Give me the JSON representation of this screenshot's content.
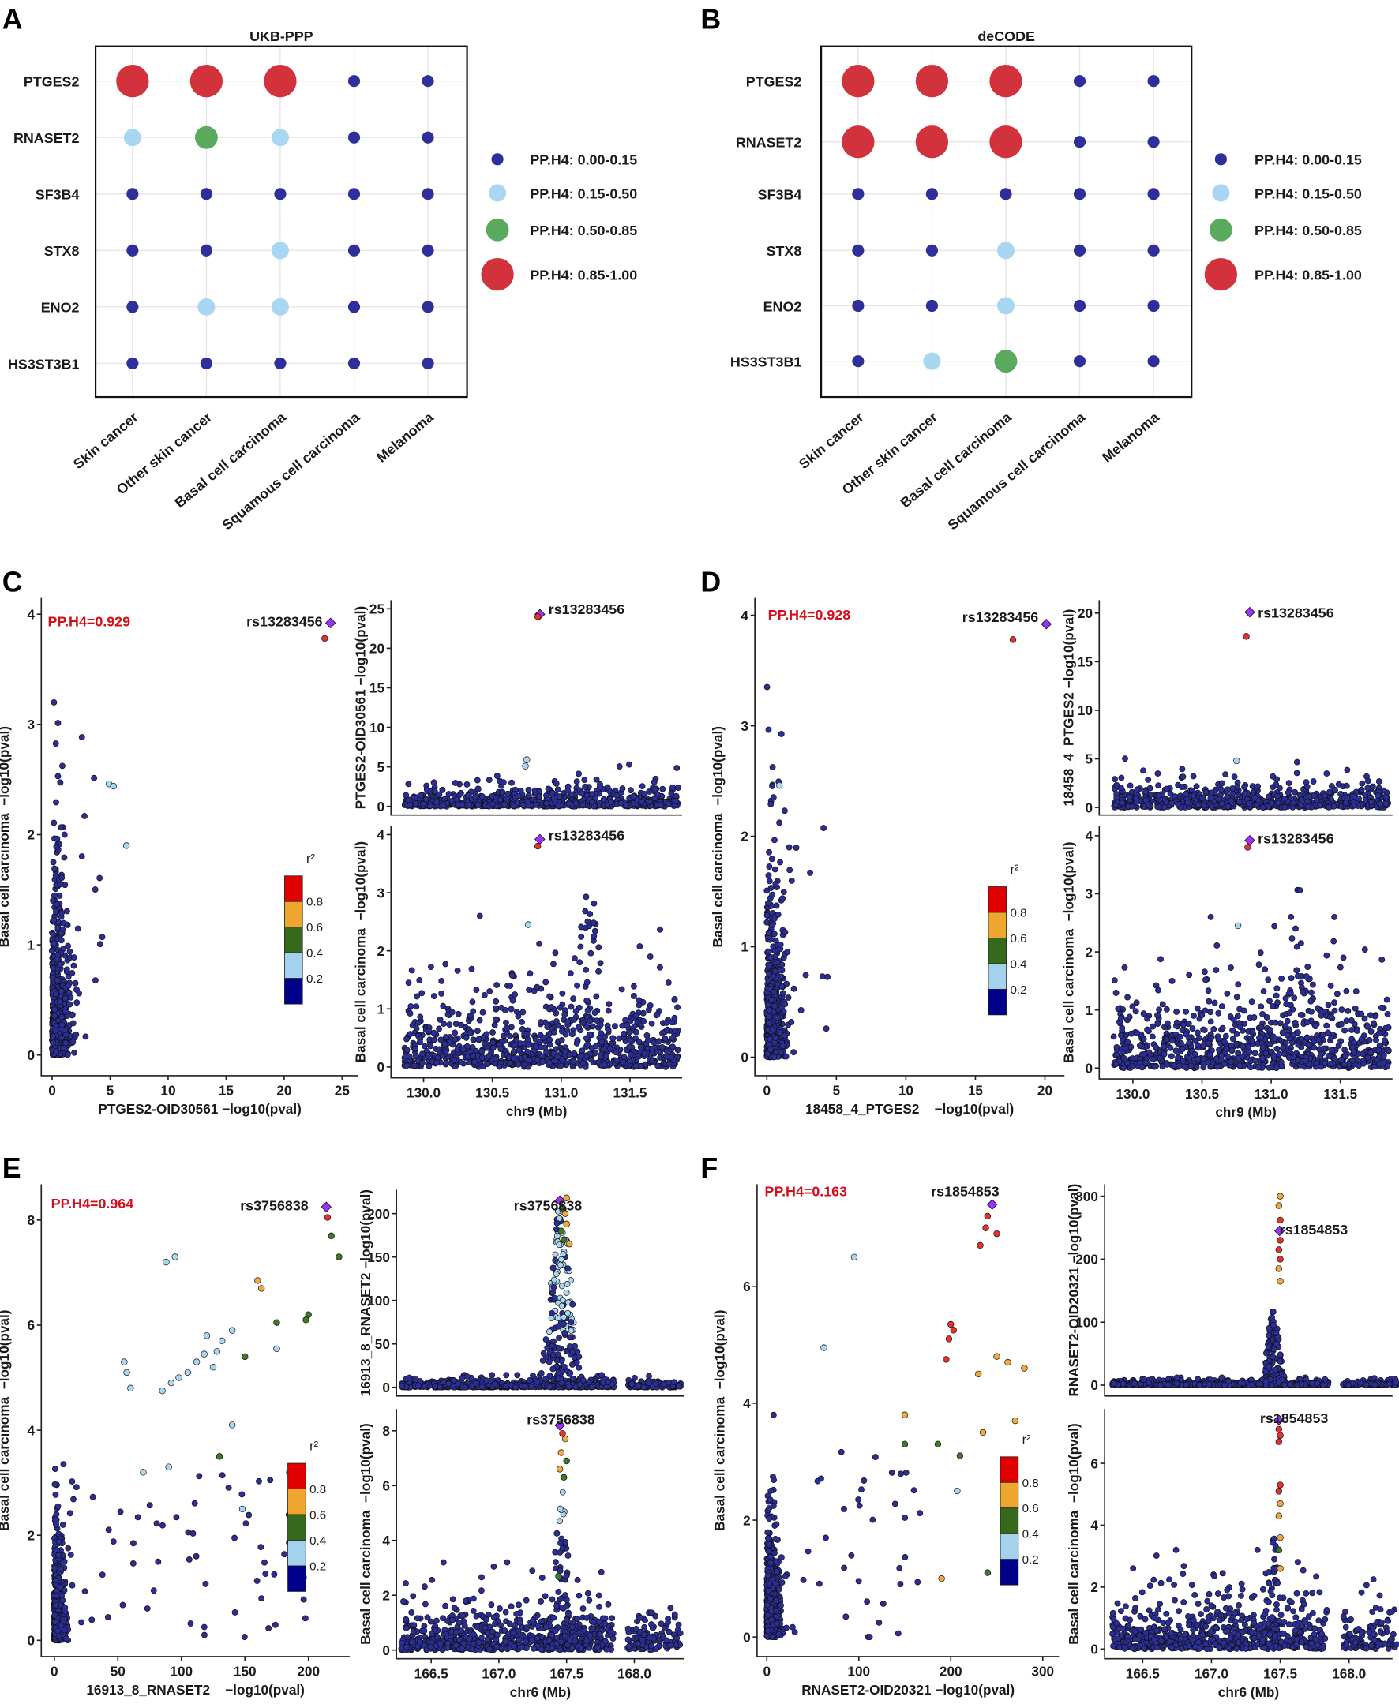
{
  "legend_ph4": {
    "items": [
      {
        "label": "PP.H4: 0.00-0.15",
        "color": "#2e2f9a"
      },
      {
        "label": "PP.H4: 0.15-0.50",
        "color": "#a9d6f0"
      },
      {
        "label": "PP.H4: 0.50-0.85",
        "color": "#5aaa5e"
      },
      {
        "label": "PP.H4: 0.85-1.00",
        "color": "#d2323b"
      }
    ]
  },
  "r2_legend": {
    "title": "r²",
    "labels": [
      "0.8",
      "0.6",
      "0.4",
      "0.2"
    ],
    "colors": [
      "#e00000",
      "#eea62e",
      "#36691c",
      "#a4d2ec",
      "#00008b"
    ]
  },
  "point_colors": {
    "lead": "#9b30ff",
    "r2_08": "#e8312f",
    "r2_06": "#f2a93b",
    "r2_04": "#3c7a28",
    "r2_02": "#a8d8ef",
    "r2_00": "#2a2e96"
  },
  "chart_data": [
    {
      "panel": "A",
      "type": "dot-matrix",
      "title": "UKB-PPP",
      "genes": [
        "PTGES2",
        "RNASET2",
        "SF3B4",
        "STX8",
        "ENO2",
        "HS3ST3B1"
      ],
      "diseases": [
        "Skin cancer",
        "Other skin cancer",
        "Basal cell carcinoma",
        "Squamous cell carcinoma",
        "Melanoma"
      ],
      "pp_h4_level": [
        [
          3,
          3,
          3,
          0,
          0
        ],
        [
          1,
          2,
          1,
          0,
          0
        ],
        [
          0,
          0,
          0,
          0,
          0
        ],
        [
          0,
          0,
          1,
          0,
          0
        ],
        [
          0,
          1,
          1,
          0,
          0
        ],
        [
          0,
          0,
          0,
          0,
          0
        ]
      ]
    },
    {
      "panel": "B",
      "type": "dot-matrix",
      "title": "deCODE",
      "genes": [
        "PTGES2",
        "RNASET2",
        "SF3B4",
        "STX8",
        "ENO2",
        "HS3ST3B1"
      ],
      "diseases": [
        "Skin cancer",
        "Other skin cancer",
        "Basal cell carcinoma",
        "Squamous cell carcinoma",
        "Melanoma"
      ],
      "pp_h4_level": [
        [
          3,
          3,
          3,
          0,
          0
        ],
        [
          3,
          3,
          3,
          0,
          0
        ],
        [
          0,
          0,
          0,
          0,
          0
        ],
        [
          0,
          0,
          1,
          0,
          0
        ],
        [
          0,
          0,
          1,
          0,
          0
        ],
        [
          0,
          1,
          2,
          0,
          0
        ]
      ]
    },
    {
      "panel": "C",
      "type": "scatter",
      "pp_h4": "PP.H4=0.929",
      "lead_snp": "rs13283456",
      "left": {
        "xlabel": "PTGES2-OID30561 −log10(pval)",
        "ylabel": "Basal cell carcinoma  −log10(pval)",
        "xlim": [
          0,
          25
        ],
        "ylim": [
          0,
          4
        ],
        "xticks": [
          0,
          5,
          10,
          15,
          20,
          25
        ],
        "yticks": [
          0,
          1,
          2,
          3,
          4
        ],
        "points": [
          {
            "x": 24,
            "y": 3.92,
            "r2": 1,
            "lead": true
          },
          {
            "x": 23.5,
            "y": 3.78,
            "r2": 0.9
          },
          {
            "x": 4.9,
            "y": 2.46,
            "r2": 0.3
          },
          {
            "x": 5.3,
            "y": 2.44,
            "r2": 0.3
          },
          {
            "x": 6.4,
            "y": 1.9,
            "r2": 0.3
          }
        ]
      },
      "top": {
        "ylabel": "PTGES2-OID30561 −log10(pval)",
        "xlim": [
          130,
          131.5
        ],
        "ylim": [
          0,
          25
        ],
        "yticks": [
          0,
          5,
          10,
          15,
          20,
          25
        ],
        "points": [
          {
            "x": 130.845,
            "y": 24.3,
            "r2": 1,
            "lead": true
          },
          {
            "x": 130.83,
            "y": 24.0,
            "r2": 0.9
          },
          {
            "x": 130.75,
            "y": 5.9,
            "r2": 0.3
          },
          {
            "x": 130.74,
            "y": 5.1,
            "r2": 0.3
          }
        ]
      },
      "bottom": {
        "xlabel": "chr9 (Mb)",
        "ylabel": "Basal cell carcinoma  −log10(pval)",
        "xlim": [
          130,
          131.5
        ],
        "ylim": [
          0,
          4
        ],
        "xticks": [
          130,
          130.5,
          131,
          131.5
        ],
        "yticks": [
          0,
          1,
          2,
          3,
          4
        ],
        "points": [
          {
            "x": 130.845,
            "y": 3.92,
            "r2": 1,
            "lead": true
          },
          {
            "x": 130.83,
            "y": 3.8,
            "r2": 0.9
          },
          {
            "x": 130.76,
            "y": 2.45,
            "r2": 0.3
          }
        ]
      }
    },
    {
      "panel": "D",
      "type": "scatter",
      "pp_h4": "PP.H4=0.928",
      "lead_snp": "rs13283456",
      "left": {
        "xlabel": "18458_4_PTGES2    −log10(pval)",
        "ylabel": "Basal cell carcinoma  −log10(pval)",
        "xlim": [
          0,
          20
        ],
        "ylim": [
          0,
          4
        ],
        "xticks": [
          0,
          5,
          10,
          15,
          20
        ],
        "yticks": [
          0,
          1,
          2,
          3,
          4
        ],
        "points": [
          {
            "x": 20.1,
            "y": 3.92,
            "r2": 1,
            "lead": true
          },
          {
            "x": 17.7,
            "y": 3.78,
            "r2": 0.9
          },
          {
            "x": 0.9,
            "y": 2.46,
            "r2": 0.3
          }
        ]
      },
      "top": {
        "ylabel": "18458_4_PTGES2 −log10(pval)",
        "xlim": [
          130,
          131.5
        ],
        "ylim": [
          0,
          20
        ],
        "yticks": [
          0,
          5,
          10,
          15,
          20
        ],
        "points": [
          {
            "x": 130.845,
            "y": 20.1,
            "r2": 1,
            "lead": true
          },
          {
            "x": 130.82,
            "y": 17.6,
            "r2": 0.9
          },
          {
            "x": 130.75,
            "y": 4.8,
            "r2": 0.3
          }
        ]
      },
      "bottom": {
        "xlabel": "chr9 (Mb)",
        "ylabel": "Basal cell carcinoma  −log10(pval)",
        "xlim": [
          130,
          131.5
        ],
        "ylim": [
          0,
          4
        ],
        "xticks": [
          130,
          130.5,
          131,
          131.5
        ],
        "yticks": [
          0,
          1,
          2,
          3,
          4
        ],
        "points": [
          {
            "x": 130.845,
            "y": 3.92,
            "r2": 1,
            "lead": true
          },
          {
            "x": 130.83,
            "y": 3.8,
            "r2": 0.9
          },
          {
            "x": 130.76,
            "y": 2.45,
            "r2": 0.3
          }
        ]
      }
    },
    {
      "panel": "E",
      "type": "scatter",
      "pp_h4": "PP.H4=0.964",
      "lead_snp": "rs3756838",
      "left": {
        "xlabel": "16913_8_RNASET2    −log10(pval)",
        "ylabel": "Basal cell carcinoma  −log10(pval)",
        "xlim": [
          0,
          200
        ],
        "ylim": [
          0,
          8
        ],
        "xticks": [
          0,
          50,
          100,
          150,
          200
        ],
        "yticks": [
          0,
          2,
          4,
          6,
          8
        ],
        "points": [
          {
            "x": 214,
            "y": 8.25,
            "r2": 1,
            "lead": true
          },
          {
            "x": 215,
            "y": 8.05,
            "r2": 0.9
          },
          {
            "x": 218,
            "y": 7.7,
            "r2": 0.5
          },
          {
            "x": 224,
            "y": 7.3,
            "r2": 0.5
          },
          {
            "x": 160,
            "y": 6.85,
            "r2": 0.7
          },
          {
            "x": 163,
            "y": 6.7,
            "r2": 0.7
          },
          {
            "x": 200,
            "y": 6.2,
            "r2": 0.5
          },
          {
            "x": 198,
            "y": 6.1,
            "r2": 0.5
          },
          {
            "x": 175,
            "y": 6.05,
            "r2": 0.5
          },
          {
            "x": 175,
            "y": 5.55,
            "r2": 0.3
          },
          {
            "x": 150,
            "y": 5.4,
            "r2": 0.5
          },
          {
            "x": 140,
            "y": 5.9,
            "r2": 0.3
          },
          {
            "x": 132,
            "y": 5.7,
            "r2": 0.3
          },
          {
            "x": 128,
            "y": 5.5,
            "r2": 0.3
          },
          {
            "x": 118,
            "y": 5.45,
            "r2": 0.3
          },
          {
            "x": 112,
            "y": 5.3,
            "r2": 0.3
          },
          {
            "x": 105,
            "y": 5.1,
            "r2": 0.3
          },
          {
            "x": 98,
            "y": 5.0,
            "r2": 0.3
          },
          {
            "x": 92,
            "y": 4.9,
            "r2": 0.3
          },
          {
            "x": 85,
            "y": 4.75,
            "r2": 0.3
          },
          {
            "x": 55,
            "y": 5.3,
            "r2": 0.3
          },
          {
            "x": 57,
            "y": 5.1,
            "r2": 0.3
          },
          {
            "x": 60,
            "y": 4.8,
            "r2": 0.3
          },
          {
            "x": 120,
            "y": 5.8,
            "r2": 0.3
          },
          {
            "x": 125,
            "y": 5.2,
            "r2": 0.3
          },
          {
            "x": 140,
            "y": 4.1,
            "r2": 0.3
          },
          {
            "x": 90,
            "y": 3.3,
            "r2": 0.3
          },
          {
            "x": 70,
            "y": 3.2,
            "r2": 0.3
          },
          {
            "x": 130,
            "y": 3.5,
            "r2": 0.5
          },
          {
            "x": 148,
            "y": 2.5,
            "r2": 0.3
          },
          {
            "x": 185,
            "y": 3.2,
            "r2": 0.3
          },
          {
            "x": 95,
            "y": 7.3,
            "r2": 0.3
          },
          {
            "x": 88,
            "y": 7.2,
            "r2": 0.3
          }
        ]
      },
      "top": {
        "ylabel": "16913_8_RNASET2 −log10(pval)",
        "xlim": [
          166.5,
          168
        ],
        "ylim": [
          0,
          200
        ],
        "yticks": [
          0,
          50,
          100,
          150,
          200
        ],
        "points": [
          {
            "x": 167.45,
            "y": 215,
            "r2": 1,
            "lead": true
          },
          {
            "x": 167.5,
            "y": 218,
            "r2": 0.7
          },
          {
            "x": 167.47,
            "y": 205,
            "r2": 0.5
          },
          {
            "x": 167.49,
            "y": 200,
            "r2": 0.7
          },
          {
            "x": 167.5,
            "y": 188,
            "r2": 0.7
          },
          {
            "x": 167.46,
            "y": 180,
            "r2": 0.5
          },
          {
            "x": 167.52,
            "y": 165,
            "r2": 0.7
          },
          {
            "x": 167.48,
            "y": 170,
            "r2": 0.5
          }
        ]
      },
      "bottom": {
        "xlabel": "chr6 (Mb)",
        "ylabel": "Basal cell carcinoma  −log10(pval)",
        "xlim": [
          166.5,
          168
        ],
        "ylim": [
          0,
          8
        ],
        "xticks": [
          166.5,
          167,
          167.5,
          168
        ],
        "yticks": [
          0,
          2,
          4,
          6,
          8
        ],
        "points": [
          {
            "x": 167.45,
            "y": 8.2,
            "r2": 1,
            "lead": true
          },
          {
            "x": 167.47,
            "y": 7.9,
            "r2": 0.9
          },
          {
            "x": 167.49,
            "y": 7.7,
            "r2": 0.7
          },
          {
            "x": 167.46,
            "y": 7.2,
            "r2": 0.7
          },
          {
            "x": 167.5,
            "y": 6.9,
            "r2": 0.5
          },
          {
            "x": 167.45,
            "y": 6.6,
            "r2": 0.7
          },
          {
            "x": 167.48,
            "y": 6.3,
            "r2": 0.5
          },
          {
            "x": 167.44,
            "y": 2.7,
            "r2": 0.5
          }
        ]
      }
    },
    {
      "panel": "F",
      "type": "scatter",
      "pp_h4": "PP.H4=0.163",
      "lead_snp": "rs1854853",
      "left": {
        "xlabel": "RNASET2-OID20321 −log10(pval)",
        "ylabel": "Basal cell carcinoma  −log10(pval)",
        "xlim": [
          0,
          300
        ],
        "ylim": [
          0,
          6
        ],
        "xticks": [
          0,
          100,
          200,
          300
        ],
        "yticks": [
          0,
          2,
          4,
          6
        ],
        "points": [
          {
            "x": 245,
            "y": 7.4,
            "r2": 1,
            "lead": true
          },
          {
            "x": 240,
            "y": 7.2,
            "r2": 0.9
          },
          {
            "x": 238,
            "y": 7.0,
            "r2": 0.9
          },
          {
            "x": 250,
            "y": 6.9,
            "r2": 0.9
          },
          {
            "x": 232,
            "y": 6.7,
            "r2": 0.9
          },
          {
            "x": 200,
            "y": 5.35,
            "r2": 0.9
          },
          {
            "x": 203,
            "y": 5.25,
            "r2": 0.9
          },
          {
            "x": 198,
            "y": 5.1,
            "r2": 0.9
          },
          {
            "x": 195,
            "y": 4.75,
            "r2": 0.9
          },
          {
            "x": 230,
            "y": 4.5,
            "r2": 0.7
          },
          {
            "x": 250,
            "y": 4.8,
            "r2": 0.7
          },
          {
            "x": 262,
            "y": 4.7,
            "r2": 0.7
          },
          {
            "x": 280,
            "y": 4.6,
            "r2": 0.7
          },
          {
            "x": 150,
            "y": 3.8,
            "r2": 0.7
          },
          {
            "x": 186,
            "y": 3.3,
            "r2": 0.5
          },
          {
            "x": 210,
            "y": 3.1,
            "r2": 0.5
          },
          {
            "x": 235,
            "y": 3.5,
            "r2": 0.7
          },
          {
            "x": 270,
            "y": 3.7,
            "r2": 0.7
          },
          {
            "x": 150,
            "y": 3.3,
            "r2": 0.5
          },
          {
            "x": 190,
            "y": 1.0,
            "r2": 0.7
          },
          {
            "x": 240,
            "y": 1.1,
            "r2": 0.5
          },
          {
            "x": 95,
            "y": 6.5,
            "r2": 0.3
          },
          {
            "x": 62,
            "y": 4.95,
            "r2": 0.3
          },
          {
            "x": 207,
            "y": 2.5,
            "r2": 0.3
          }
        ]
      },
      "top": {
        "ylabel": "RNASET2-OID20321 −log10(pval)",
        "xlim": [
          166.5,
          168
        ],
        "ylim": [
          0,
          300
        ],
        "yticks": [
          0,
          100,
          200,
          300
        ],
        "points": [
          {
            "x": 167.5,
            "y": 300,
            "r2": 0.7
          },
          {
            "x": 167.49,
            "y": 285,
            "r2": 0.7
          },
          {
            "x": 167.5,
            "y": 262,
            "r2": 0.9
          },
          {
            "x": 167.495,
            "y": 245,
            "r2": 1,
            "lead": true
          },
          {
            "x": 167.5,
            "y": 230,
            "r2": 0.9
          },
          {
            "x": 167.49,
            "y": 215,
            "r2": 0.9
          },
          {
            "x": 167.5,
            "y": 200,
            "r2": 0.9
          },
          {
            "x": 167.49,
            "y": 185,
            "r2": 0.7
          },
          {
            "x": 167.5,
            "y": 165,
            "r2": 0.7
          }
        ]
      },
      "bottom": {
        "xlabel": "chr6 (Mb)",
        "ylabel": "Basal cell carcinoma  −log10(pval)",
        "xlim": [
          166.5,
          168
        ],
        "ylim": [
          0,
          6
        ],
        "xticks": [
          166.5,
          167,
          167.5,
          168
        ],
        "yticks": [
          0,
          2,
          4,
          6
        ],
        "points": [
          {
            "x": 167.49,
            "y": 7.4,
            "r2": 1,
            "lead": true
          },
          {
            "x": 167.49,
            "y": 7.1,
            "r2": 0.9
          },
          {
            "x": 167.5,
            "y": 6.9,
            "r2": 0.9
          },
          {
            "x": 167.49,
            "y": 6.7,
            "r2": 0.9
          },
          {
            "x": 167.5,
            "y": 5.3,
            "r2": 0.9
          },
          {
            "x": 167.49,
            "y": 5.1,
            "r2": 0.9
          },
          {
            "x": 167.5,
            "y": 4.7,
            "r2": 0.7
          },
          {
            "x": 167.49,
            "y": 4.3,
            "r2": 0.7
          },
          {
            "x": 167.5,
            "y": 3.6,
            "r2": 0.7
          },
          {
            "x": 167.49,
            "y": 3.2,
            "r2": 0.5
          },
          {
            "x": 167.5,
            "y": 2.6,
            "r2": 0.7
          }
        ]
      }
    }
  ]
}
